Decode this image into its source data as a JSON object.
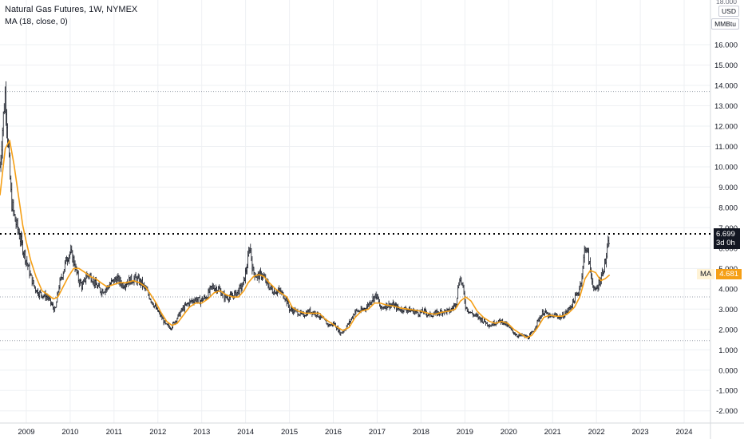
{
  "legend": {
    "title": "Natural Gas Futures, 1W, NYMEX",
    "indicator": "MA (18, close, 0)"
  },
  "top_right": {
    "scale_label": "18.000",
    "currency": "USD",
    "unit": "MMBtu"
  },
  "price_badge": {
    "value": "6.699",
    "countdown": "3d 0h"
  },
  "ma_badge": {
    "label": "MA",
    "value": "4.681"
  },
  "colors": {
    "background": "#ffffff",
    "bars": "#131722",
    "ma_line": "#f59f16",
    "grid": "#eef0f3",
    "price_line": "#000000",
    "dotted_levels": "#9aa0ac",
    "badge_dark": "#131722"
  },
  "chart_data": {
    "type": "ohlc",
    "x_axis": {
      "ticks": [
        "2009",
        "2010",
        "2011",
        "2012",
        "2013",
        "2014",
        "2015",
        "2016",
        "2017",
        "2018",
        "2019",
        "2020",
        "2021",
        "2022",
        "2023",
        "2024"
      ],
      "range": [
        2008.4,
        2024.6
      ]
    },
    "y_axis": {
      "ticks": [
        "-2.000",
        "-1.000",
        "0.000",
        "1.000",
        "2.000",
        "3.000",
        "4.000",
        "5.000",
        "6.000",
        "7.000",
        "8.000",
        "9.000",
        "10.000",
        "11.000",
        "12.000",
        "13.000",
        "14.000",
        "15.000",
        "16.000"
      ],
      "range": [
        -2.6,
        18.2
      ],
      "position": "right"
    },
    "horizontal_levels": [
      13.7,
      6.699,
      3.6,
      1.45
    ],
    "price_series": [
      [
        2008.4,
        10.0
      ],
      [
        2008.48,
        12.6
      ],
      [
        2008.52,
        13.7
      ],
      [
        2008.58,
        11.3
      ],
      [
        2008.66,
        8.3
      ],
      [
        2008.74,
        7.4
      ],
      [
        2008.82,
        6.8
      ],
      [
        2008.92,
        6.0
      ],
      [
        2009.0,
        5.4
      ],
      [
        2009.1,
        4.6
      ],
      [
        2009.18,
        4.1
      ],
      [
        2009.28,
        3.8
      ],
      [
        2009.38,
        3.7
      ],
      [
        2009.48,
        3.6
      ],
      [
        2009.58,
        3.2
      ],
      [
        2009.66,
        2.9
      ],
      [
        2009.74,
        4.1
      ],
      [
        2009.82,
        4.7
      ],
      [
        2009.92,
        5.5
      ],
      [
        2010.0,
        5.8
      ],
      [
        2010.08,
        5.4
      ],
      [
        2010.18,
        4.5
      ],
      [
        2010.28,
        4.1
      ],
      [
        2010.38,
        4.7
      ],
      [
        2010.48,
        4.6
      ],
      [
        2010.58,
        4.2
      ],
      [
        2010.7,
        3.9
      ],
      [
        2010.82,
        4.0
      ],
      [
        2010.94,
        4.3
      ],
      [
        2011.06,
        4.5
      ],
      [
        2011.2,
        4.2
      ],
      [
        2011.34,
        4.4
      ],
      [
        2011.48,
        4.5
      ],
      [
        2011.62,
        4.3
      ],
      [
        2011.74,
        3.9
      ],
      [
        2011.86,
        3.4
      ],
      [
        2011.96,
        3.0
      ],
      [
        2012.06,
        2.7
      ],
      [
        2012.18,
        2.2
      ],
      [
        2012.3,
        2.1
      ],
      [
        2012.42,
        2.5
      ],
      [
        2012.56,
        3.0
      ],
      [
        2012.7,
        3.3
      ],
      [
        2012.86,
        3.5
      ],
      [
        2012.96,
        3.4
      ],
      [
        2013.1,
        3.6
      ],
      [
        2013.24,
        4.1
      ],
      [
        2013.38,
        4.0
      ],
      [
        2013.52,
        3.6
      ],
      [
        2013.66,
        3.6
      ],
      [
        2013.8,
        3.8
      ],
      [
        2013.94,
        4.2
      ],
      [
        2014.04,
        5.2
      ],
      [
        2014.1,
        6.2
      ],
      [
        2014.16,
        4.9
      ],
      [
        2014.26,
        4.6
      ],
      [
        2014.38,
        4.7
      ],
      [
        2014.5,
        4.2
      ],
      [
        2014.62,
        3.9
      ],
      [
        2014.76,
        3.9
      ],
      [
        2014.9,
        3.6
      ],
      [
        2015.0,
        3.0
      ],
      [
        2015.14,
        2.9
      ],
      [
        2015.3,
        2.7
      ],
      [
        2015.46,
        2.9
      ],
      [
        2015.6,
        2.8
      ],
      [
        2015.76,
        2.5
      ],
      [
        2015.9,
        2.2
      ],
      [
        2016.02,
        2.3
      ],
      [
        2016.16,
        1.8
      ],
      [
        2016.24,
        1.95
      ],
      [
        2016.38,
        2.4
      ],
      [
        2016.5,
        2.9
      ],
      [
        2016.62,
        2.9
      ],
      [
        2016.76,
        3.1
      ],
      [
        2016.88,
        3.5
      ],
      [
        2016.98,
        3.7
      ],
      [
        2017.08,
        3.0
      ],
      [
        2017.2,
        3.2
      ],
      [
        2017.36,
        3.2
      ],
      [
        2017.5,
        3.0
      ],
      [
        2017.66,
        3.0
      ],
      [
        2017.82,
        2.9
      ],
      [
        2017.96,
        2.8
      ],
      [
        2018.06,
        2.9
      ],
      [
        2018.2,
        2.7
      ],
      [
        2018.36,
        2.8
      ],
      [
        2018.5,
        2.9
      ],
      [
        2018.66,
        2.9
      ],
      [
        2018.8,
        3.3
      ],
      [
        2018.88,
        4.6
      ],
      [
        2018.94,
        4.2
      ],
      [
        2019.02,
        3.1
      ],
      [
        2019.14,
        2.8
      ],
      [
        2019.3,
        2.6
      ],
      [
        2019.44,
        2.4
      ],
      [
        2019.58,
        2.2
      ],
      [
        2019.72,
        2.4
      ],
      [
        2019.86,
        2.4
      ],
      [
        2019.96,
        2.2
      ],
      [
        2020.08,
        1.9
      ],
      [
        2020.2,
        1.7
      ],
      [
        2020.32,
        1.7
      ],
      [
        2020.44,
        1.6
      ],
      [
        2020.56,
        1.9
      ],
      [
        2020.68,
        2.5
      ],
      [
        2020.8,
        2.9
      ],
      [
        2020.94,
        2.6
      ],
      [
        2021.06,
        2.7
      ],
      [
        2021.2,
        2.6
      ],
      [
        2021.34,
        2.9
      ],
      [
        2021.48,
        3.4
      ],
      [
        2021.6,
        3.9
      ],
      [
        2021.68,
        4.8
      ],
      [
        2021.74,
        6.2
      ],
      [
        2021.8,
        5.7
      ],
      [
        2021.88,
        4.7
      ],
      [
        2021.96,
        3.8
      ],
      [
        2022.04,
        4.2
      ],
      [
        2022.12,
        4.7
      ],
      [
        2022.2,
        5.3
      ],
      [
        2022.26,
        6.0
      ],
      [
        2022.3,
        6.7
      ]
    ],
    "ma_series": [
      [
        2008.4,
        8.6
      ],
      [
        2008.52,
        10.9
      ],
      [
        2008.62,
        11.3
      ],
      [
        2008.72,
        10.1
      ],
      [
        2008.82,
        8.6
      ],
      [
        2008.92,
        7.1
      ],
      [
        2009.0,
        6.3
      ],
      [
        2009.1,
        5.4
      ],
      [
        2009.22,
        4.6
      ],
      [
        2009.36,
        3.9
      ],
      [
        2009.5,
        3.7
      ],
      [
        2009.62,
        3.5
      ],
      [
        2009.72,
        3.6
      ],
      [
        2009.84,
        4.1
      ],
      [
        2009.96,
        4.6
      ],
      [
        2010.08,
        5.0
      ],
      [
        2010.2,
        5.0
      ],
      [
        2010.34,
        4.8
      ],
      [
        2010.46,
        4.6
      ],
      [
        2010.58,
        4.5
      ],
      [
        2010.7,
        4.3
      ],
      [
        2010.84,
        4.1
      ],
      [
        2010.98,
        4.2
      ],
      [
        2011.12,
        4.3
      ],
      [
        2011.28,
        4.3
      ],
      [
        2011.44,
        4.4
      ],
      [
        2011.58,
        4.3
      ],
      [
        2011.72,
        4.1
      ],
      [
        2011.84,
        3.7
      ],
      [
        2011.96,
        3.3
      ],
      [
        2012.08,
        2.8
      ],
      [
        2012.2,
        2.4
      ],
      [
        2012.32,
        2.2
      ],
      [
        2012.44,
        2.3
      ],
      [
        2012.58,
        2.7
      ],
      [
        2012.72,
        3.1
      ],
      [
        2012.86,
        3.3
      ],
      [
        2013.0,
        3.3
      ],
      [
        2013.14,
        3.5
      ],
      [
        2013.28,
        3.8
      ],
      [
        2013.42,
        3.9
      ],
      [
        2013.56,
        3.7
      ],
      [
        2013.7,
        3.6
      ],
      [
        2013.84,
        3.6
      ],
      [
        2013.96,
        3.9
      ],
      [
        2014.06,
        4.3
      ],
      [
        2014.18,
        4.6
      ],
      [
        2014.3,
        4.7
      ],
      [
        2014.42,
        4.6
      ],
      [
        2014.54,
        4.3
      ],
      [
        2014.68,
        4.0
      ],
      [
        2014.8,
        3.8
      ],
      [
        2014.94,
        3.6
      ],
      [
        2015.06,
        3.1
      ],
      [
        2015.2,
        2.9
      ],
      [
        2015.36,
        2.8
      ],
      [
        2015.52,
        2.8
      ],
      [
        2015.68,
        2.8
      ],
      [
        2015.82,
        2.5
      ],
      [
        2015.96,
        2.3
      ],
      [
        2016.1,
        2.1
      ],
      [
        2016.22,
        1.95
      ],
      [
        2016.36,
        2.1
      ],
      [
        2016.5,
        2.6
      ],
      [
        2016.64,
        2.9
      ],
      [
        2016.8,
        3.0
      ],
      [
        2016.94,
        3.3
      ],
      [
        2017.06,
        3.3
      ],
      [
        2017.22,
        3.2
      ],
      [
        2017.38,
        3.15
      ],
      [
        2017.54,
        3.05
      ],
      [
        2017.7,
        3.0
      ],
      [
        2017.86,
        2.95
      ],
      [
        2018.0,
        2.9
      ],
      [
        2018.16,
        2.8
      ],
      [
        2018.32,
        2.75
      ],
      [
        2018.48,
        2.85
      ],
      [
        2018.64,
        2.9
      ],
      [
        2018.78,
        3.0
      ],
      [
        2018.9,
        3.4
      ],
      [
        2019.02,
        3.6
      ],
      [
        2019.14,
        3.4
      ],
      [
        2019.28,
        2.9
      ],
      [
        2019.42,
        2.6
      ],
      [
        2019.56,
        2.4
      ],
      [
        2019.7,
        2.3
      ],
      [
        2019.84,
        2.4
      ],
      [
        2019.98,
        2.3
      ],
      [
        2020.12,
        2.0
      ],
      [
        2020.26,
        1.8
      ],
      [
        2020.4,
        1.6
      ],
      [
        2020.52,
        1.7
      ],
      [
        2020.66,
        2.1
      ],
      [
        2020.8,
        2.6
      ],
      [
        2020.94,
        2.7
      ],
      [
        2021.08,
        2.65
      ],
      [
        2021.22,
        2.65
      ],
      [
        2021.36,
        2.8
      ],
      [
        2021.5,
        3.1
      ],
      [
        2021.62,
        3.6
      ],
      [
        2021.74,
        4.5
      ],
      [
        2021.86,
        4.9
      ],
      [
        2021.98,
        4.8
      ],
      [
        2022.1,
        4.4
      ],
      [
        2022.2,
        4.5
      ],
      [
        2022.3,
        4.681
      ]
    ]
  }
}
